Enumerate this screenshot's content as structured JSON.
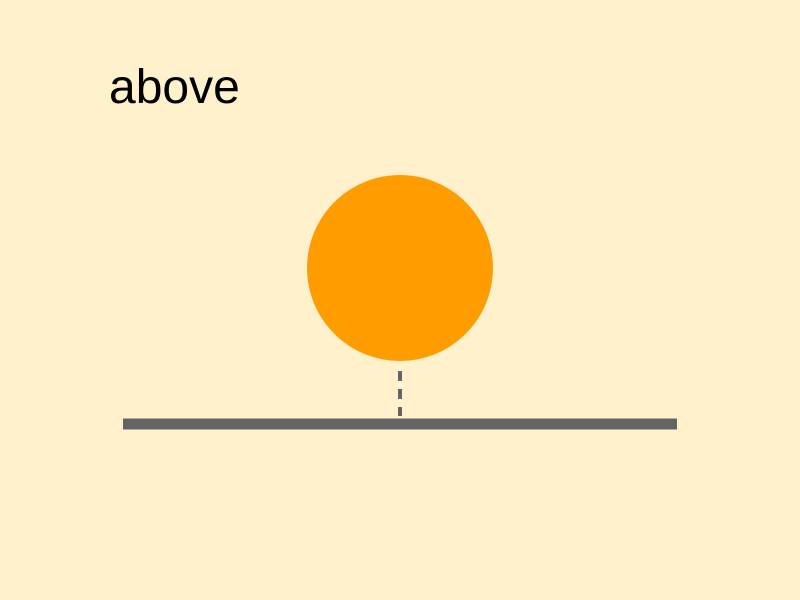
{
  "scene": {
    "label": "above",
    "relation": "above",
    "background_color": "#FFF1CC",
    "circle_color": "#FF9C00",
    "surface_color": "#646464",
    "connector_style": "dashed"
  }
}
